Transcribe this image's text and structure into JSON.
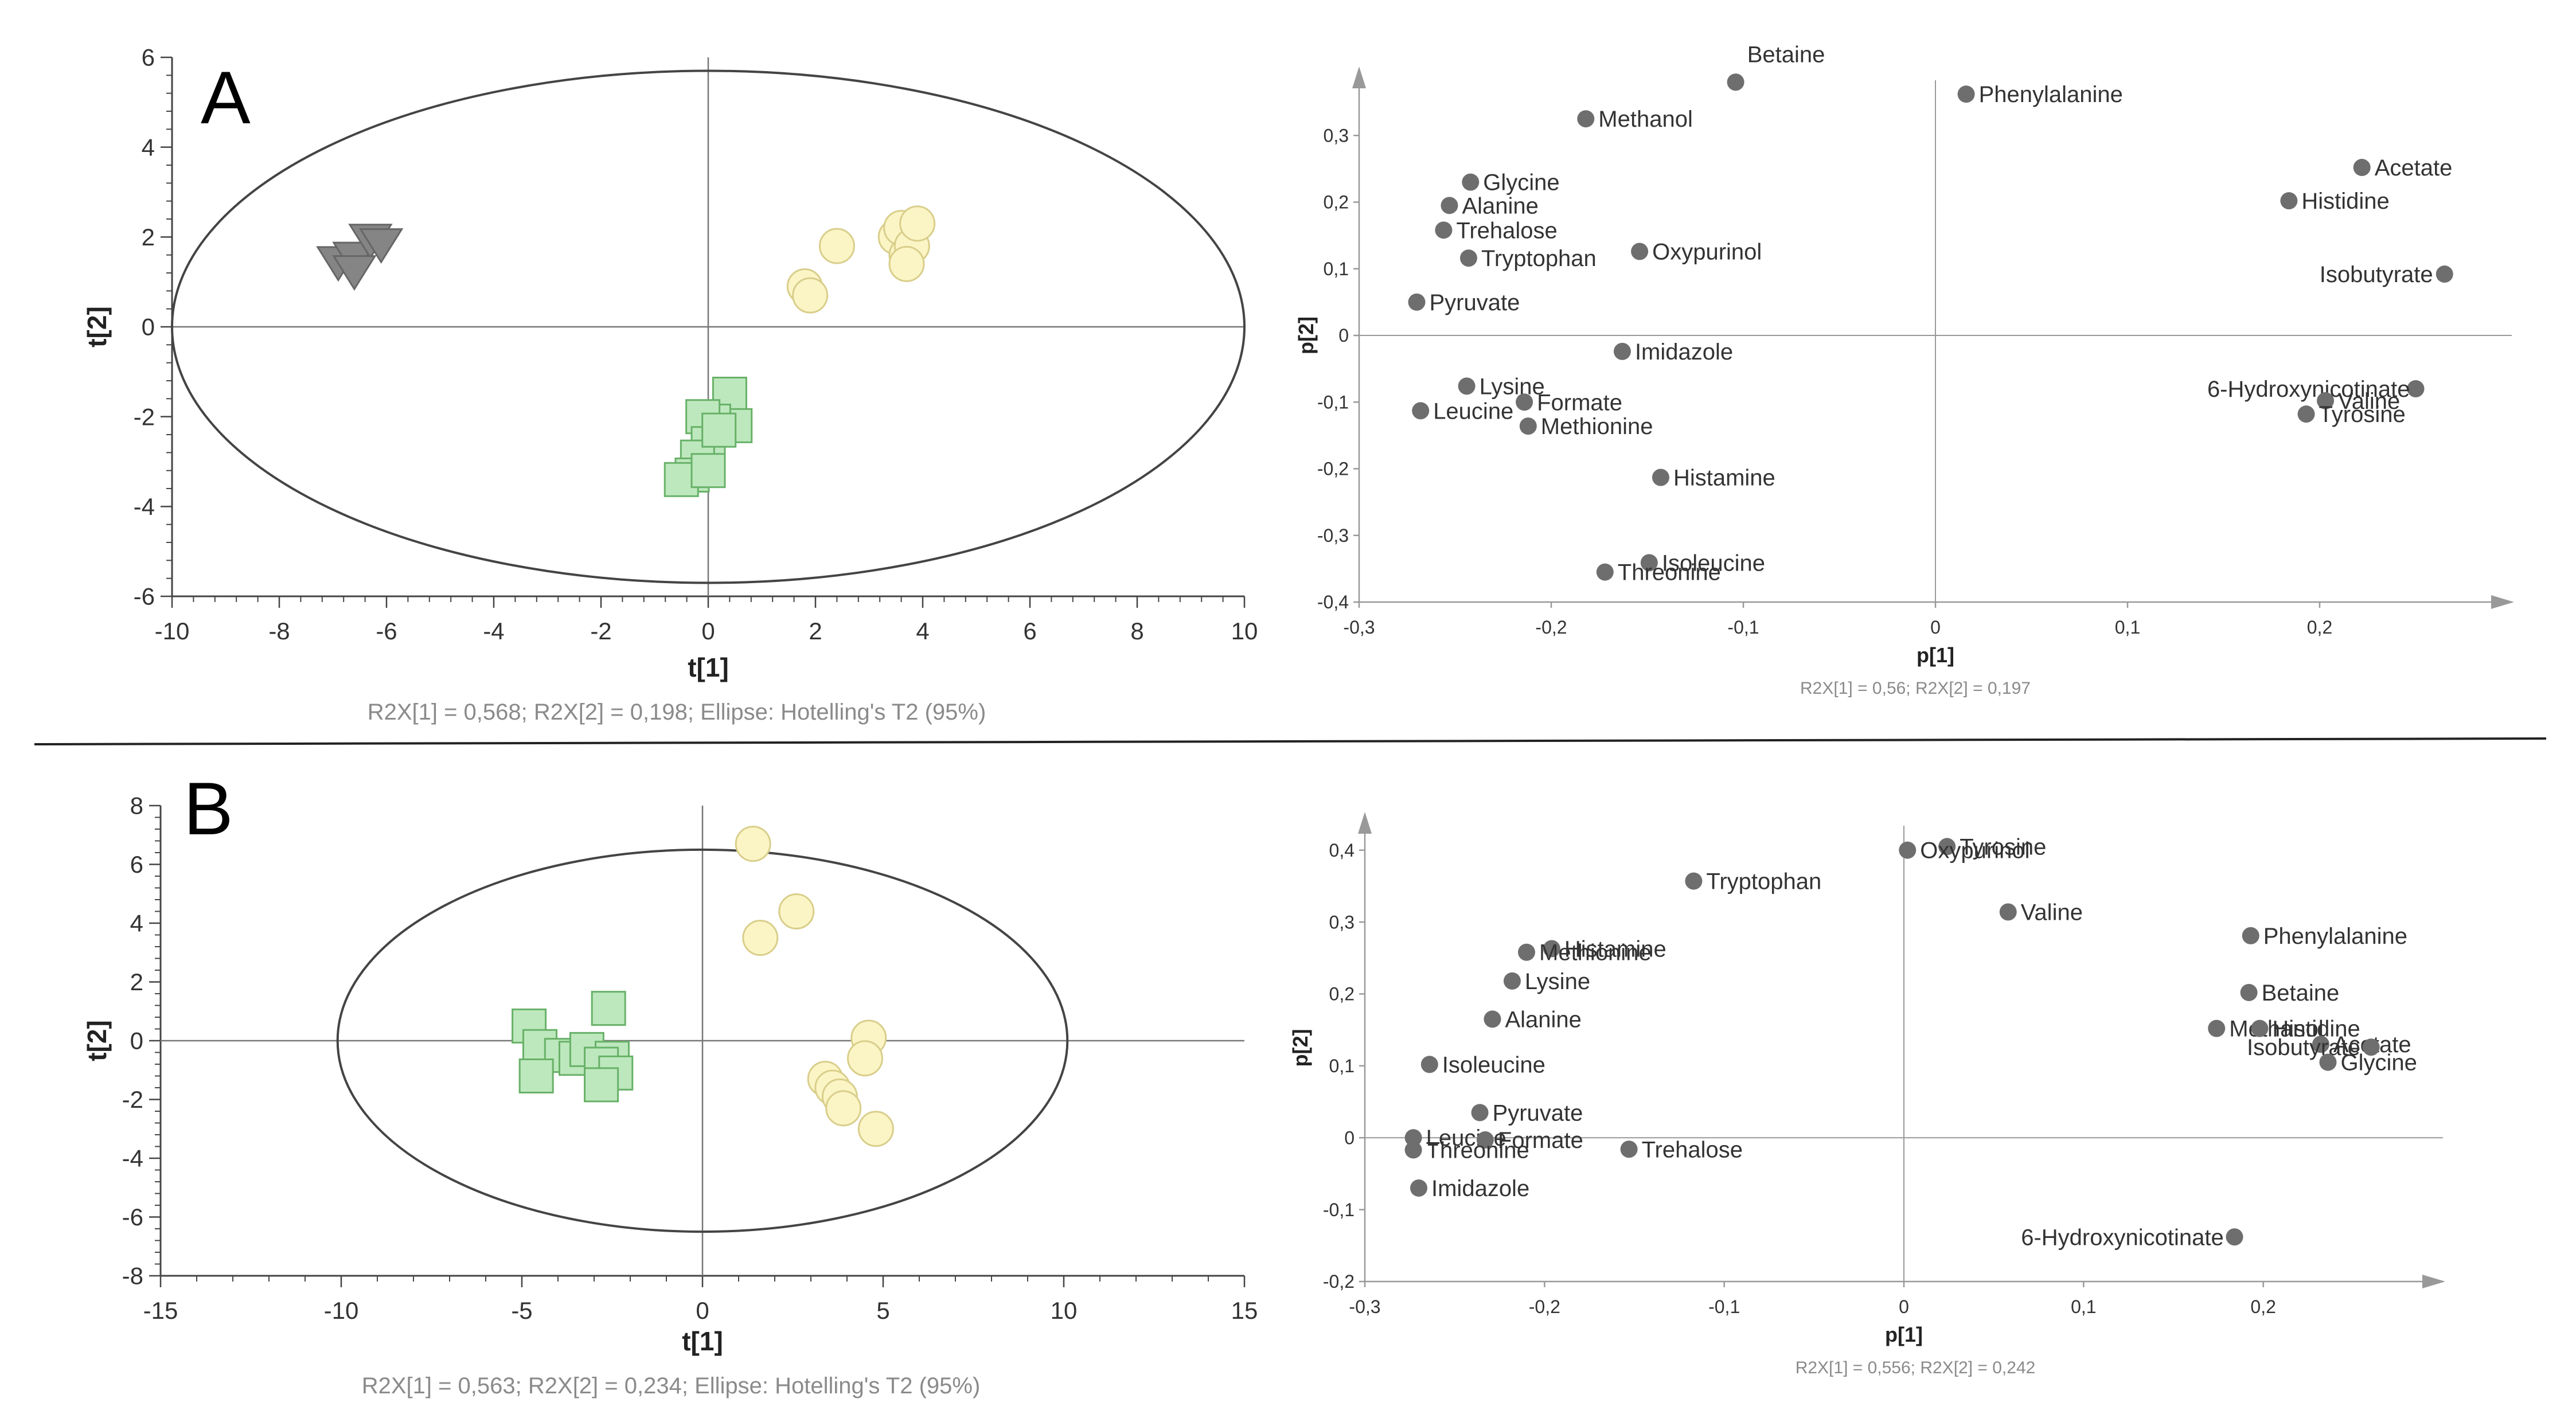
{
  "panels": [
    {
      "letter": "A"
    },
    {
      "letter": "B"
    }
  ],
  "colors": {
    "group_triangle": "#858585",
    "group_circle_fill": "#fbf5c6",
    "group_circle_stroke": "#d9ce8a",
    "group_square_fill": "#bde8bd",
    "group_square_stroke": "#68b168",
    "loading_point": "#6e6e6e",
    "axis": "#555555",
    "caption": "#8a8a8a"
  },
  "chart_data": [
    {
      "id": "A-scores",
      "type": "scatter",
      "xlabel": "t[1]",
      "ylabel": "t[2]",
      "xlim": [
        -10,
        10
      ],
      "ylim": [
        -6,
        6
      ],
      "xticks": [
        "-10",
        "-8",
        "-6",
        "-4",
        "-2",
        "0",
        "2",
        "4",
        "6",
        "8",
        "10"
      ],
      "yticks": [
        "-6",
        "-4",
        "-2",
        "0",
        "2",
        "4",
        "6"
      ],
      "caption": "R2X[1] = 0,568; R2X[2] = 0,198; Ellipse: Hotelling's T2 (95%)",
      "ellipse": {
        "rx": 10,
        "ry": 5.7
      },
      "series": [
        {
          "marker": "triangle",
          "points": [
            [
              -6.9,
              1.5
            ],
            [
              -6.6,
              1.6
            ],
            [
              -6.3,
              2.0
            ],
            [
              -6.1,
              1.9
            ],
            [
              -6.6,
              1.3
            ]
          ]
        },
        {
          "marker": "circle",
          "points": [
            [
              1.8,
              0.9
            ],
            [
              1.9,
              0.7
            ],
            [
              2.4,
              1.8
            ],
            [
              3.5,
              2.0
            ],
            [
              3.6,
              2.2
            ],
            [
              3.7,
              1.6
            ],
            [
              3.8,
              1.8
            ],
            [
              3.9,
              2.3
            ],
            [
              3.7,
              1.4
            ]
          ]
        },
        {
          "marker": "square",
          "points": [
            [
              0.4,
              -1.5
            ],
            [
              0.5,
              -2.2
            ],
            [
              0.1,
              -2.1
            ],
            [
              -0.1,
              -2.0
            ],
            [
              0.0,
              -2.6
            ],
            [
              -0.2,
              -2.9
            ],
            [
              -0.3,
              -3.3
            ],
            [
              -0.5,
              -3.4
            ],
            [
              0.0,
              -3.2
            ],
            [
              0.2,
              -2.3
            ]
          ]
        }
      ]
    },
    {
      "id": "A-loadings",
      "type": "scatter",
      "xlabel": "p[1]",
      "ylabel": "p[2]",
      "xlim": [
        -0.3,
        0.3
      ],
      "ylim": [
        -0.4,
        0.4
      ],
      "xticks": [
        "-0,3",
        "-0,2",
        "-0,1",
        "0",
        "0,1",
        "0,2"
      ],
      "yticks": [
        "-0,4",
        "-0,3",
        "-0,2",
        "-0,1",
        "0",
        "0,1",
        "0,2",
        "0,3"
      ],
      "caption": "R2X[1] = 0,56; R2X[2] = 0,197",
      "points": [
        {
          "label": "Betaine",
          "x": -0.104,
          "y": 0.38,
          "lx": 0.006,
          "ly": -0.042
        },
        {
          "label": "Phenylalanine",
          "x": 0.016,
          "y": 0.362
        },
        {
          "label": "Methanol",
          "x": -0.182,
          "y": 0.325
        },
        {
          "label": "Acetate",
          "x": 0.222,
          "y": 0.252
        },
        {
          "label": "Glycine",
          "x": -0.242,
          "y": 0.23
        },
        {
          "label": "Histidine",
          "x": 0.184,
          "y": 0.202
        },
        {
          "label": "Alanine",
          "x": -0.253,
          "y": 0.195
        },
        {
          "label": "Trehalose",
          "x": -0.256,
          "y": 0.158
        },
        {
          "label": "Oxypurinol",
          "x": -0.154,
          "y": 0.126
        },
        {
          "label": "Tryptophan",
          "x": -0.243,
          "y": 0.116
        },
        {
          "label": "Isobutyrate",
          "x": 0.265,
          "y": 0.092,
          "anchor": "end",
          "lx": -0.006,
          "ly": 0
        },
        {
          "label": "Pyruvate",
          "x": -0.27,
          "y": 0.05
        },
        {
          "label": "Imidazole",
          "x": -0.163,
          "y": -0.024
        },
        {
          "label": "Lysine",
          "x": -0.244,
          "y": -0.076
        },
        {
          "label": "6-Hydroxynicotinate",
          "x": 0.25,
          "y": -0.08,
          "anchor": "end",
          "lx": -0.003,
          "ly": 0
        },
        {
          "label": "Formate",
          "x": -0.214,
          "y": -0.1
        },
        {
          "label": "Valine",
          "x": 0.203,
          "y": -0.098
        },
        {
          "label": "Leucine",
          "x": -0.268,
          "y": -0.113
        },
        {
          "label": "Tyrosine",
          "x": 0.193,
          "y": -0.118
        },
        {
          "label": "Methionine",
          "x": -0.212,
          "y": -0.136
        },
        {
          "label": "Histamine",
          "x": -0.143,
          "y": -0.213
        },
        {
          "label": "Isoleucine",
          "x": -0.149,
          "y": -0.341
        },
        {
          "label": "Threonine",
          "x": -0.172,
          "y": -0.355
        }
      ]
    },
    {
      "id": "B-scores",
      "type": "scatter",
      "xlabel": "t[1]",
      "ylabel": "t[2]",
      "xlim": [
        -15,
        15
      ],
      "ylim": [
        -8,
        8
      ],
      "xticks": [
        "-15",
        "-10",
        "-5",
        "0",
        "5",
        "10",
        "15"
      ],
      "yticks": [
        "-8",
        "-6",
        "-4",
        "-2",
        "0",
        "2",
        "4",
        "6",
        "8"
      ],
      "caption": "R2X[1] = 0,563; R2X[2] = 0,234; Ellipse: Hotelling's T2 (95%)",
      "ellipse": {
        "rx": 10.1,
        "ry": 6.5
      },
      "series": [
        {
          "marker": "circle",
          "points": [
            [
              1.4,
              6.7
            ],
            [
              2.6,
              4.4
            ],
            [
              1.6,
              3.5
            ],
            [
              4.6,
              0.1
            ],
            [
              4.5,
              -0.6
            ],
            [
              3.4,
              -1.3
            ],
            [
              3.6,
              -1.6
            ],
            [
              3.8,
              -1.9
            ],
            [
              3.9,
              -2.3
            ],
            [
              4.8,
              -3.0
            ]
          ]
        },
        {
          "marker": "square",
          "points": [
            [
              -4.8,
              0.5
            ],
            [
              -4.5,
              -0.2
            ],
            [
              -3.9,
              -0.5
            ],
            [
              -3.5,
              -0.6
            ],
            [
              -3.2,
              -0.3
            ],
            [
              -2.6,
              1.1
            ],
            [
              -2.5,
              -0.6
            ],
            [
              -2.8,
              -0.8
            ],
            [
              -2.4,
              -1.1
            ],
            [
              -4.6,
              -1.2
            ],
            [
              -2.8,
              -1.5
            ]
          ]
        }
      ]
    },
    {
      "id": "B-loadings",
      "type": "scatter",
      "xlabel": "p[1]",
      "ylabel": "p[2]",
      "xlim": [
        -0.3,
        0.3
      ],
      "ylim": [
        -0.2,
        0.45
      ],
      "xticks": [
        "-0,3",
        "-0,2",
        "-0,1",
        "0",
        "0,1",
        "0,2"
      ],
      "yticks": [
        "-0,2",
        "-0,1",
        "0",
        "0,1",
        "0,2",
        "0,3",
        "0,4"
      ],
      "caption": "R2X[1] = 0,556; R2X[2] = 0,242",
      "points": [
        {
          "label": "Tyrosine",
          "x": 0.024,
          "y": 0.405
        },
        {
          "label": "Oxypurinol",
          "x": 0.002,
          "y": 0.4
        },
        {
          "label": "Tryptophan",
          "x": -0.117,
          "y": 0.357
        },
        {
          "label": "Valine",
          "x": 0.058,
          "y": 0.314
        },
        {
          "label": "Phenylalanine",
          "x": 0.193,
          "y": 0.281
        },
        {
          "label": "Histamine",
          "x": -0.196,
          "y": 0.263
        },
        {
          "label": "Methionine",
          "x": -0.21,
          "y": 0.258
        },
        {
          "label": "Lysine",
          "x": -0.218,
          "y": 0.218
        },
        {
          "label": "Betaine",
          "x": 0.192,
          "y": 0.202
        },
        {
          "label": "Alanine",
          "x": -0.229,
          "y": 0.165
        },
        {
          "label": "Methanol",
          "x": 0.174,
          "y": 0.152
        },
        {
          "label": "Histidine",
          "x": 0.198,
          "y": 0.152
        },
        {
          "label": "Acetate",
          "x": 0.232,
          "y": 0.13
        },
        {
          "label": "Isobutyrate",
          "x": 0.26,
          "y": 0.126,
          "anchor": "end",
          "lx": -0.006,
          "ly": 0
        },
        {
          "label": "Glycine",
          "x": 0.236,
          "y": 0.105
        },
        {
          "label": "Isoleucine",
          "x": -0.264,
          "y": 0.102
        },
        {
          "label": "Pyruvate",
          "x": -0.236,
          "y": 0.035
        },
        {
          "label": "Leucine",
          "x": -0.273,
          "y": 0.0
        },
        {
          "label": "Formate",
          "x": -0.233,
          "y": -0.003
        },
        {
          "label": "Threonine",
          "x": -0.273,
          "y": -0.017
        },
        {
          "label": "Trehalose",
          "x": -0.153,
          "y": -0.016
        },
        {
          "label": "Imidazole",
          "x": -0.27,
          "y": -0.07
        },
        {
          "label": "6-Hydroxynicotinate",
          "x": 0.184,
          "y": -0.138,
          "anchor": "end",
          "lx": -0.006,
          "ly": 0
        }
      ]
    }
  ]
}
